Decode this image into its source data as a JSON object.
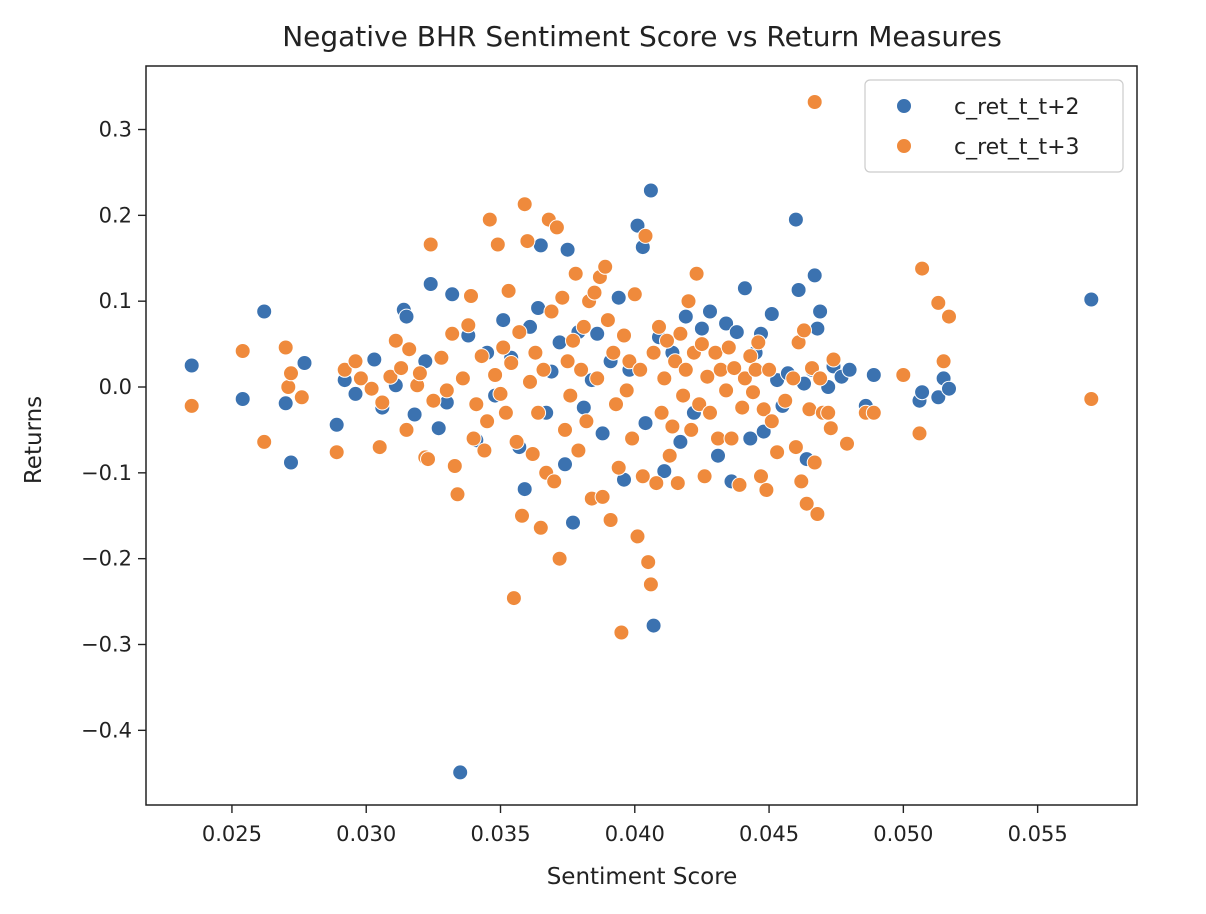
{
  "chart_data": {
    "type": "scatter",
    "title": "Negative BHR Sentiment Score vs Return Measures",
    "xlabel": "Sentiment Score",
    "ylabel": "Returns",
    "xlim": [
      0.0218,
      0.0587
    ],
    "ylim": [
      -0.487,
      0.374
    ],
    "x_ticks": [
      0.025,
      0.03,
      0.035,
      0.04,
      0.045,
      0.05,
      0.055
    ],
    "x_tick_labels": [
      "0.025",
      "0.030",
      "0.035",
      "0.040",
      "0.045",
      "0.050",
      "0.055"
    ],
    "y_ticks": [
      -0.4,
      -0.3,
      -0.2,
      -0.1,
      0.0,
      0.1,
      0.2,
      0.3
    ],
    "y_tick_labels": [
      "−0.4",
      "−0.3",
      "−0.2",
      "−0.1",
      "0.0",
      "0.1",
      "0.2",
      "0.3"
    ],
    "grid": false,
    "legend_position": "top-right",
    "series": [
      {
        "name": "c_ret_t_t+2",
        "color": "#3b72b0",
        "points": [
          [
            0.0235,
            0.025
          ],
          [
            0.0254,
            -0.014
          ],
          [
            0.0262,
            0.088
          ],
          [
            0.027,
            -0.019
          ],
          [
            0.0272,
            -0.088
          ],
          [
            0.0277,
            0.028
          ],
          [
            0.0289,
            -0.044
          ],
          [
            0.0292,
            0.008
          ],
          [
            0.0296,
            -0.008
          ],
          [
            0.0303,
            0.032
          ],
          [
            0.0306,
            -0.024
          ],
          [
            0.0311,
            0.002
          ],
          [
            0.0314,
            0.09
          ],
          [
            0.0315,
            0.082
          ],
          [
            0.0318,
            -0.032
          ],
          [
            0.0322,
            0.03
          ],
          [
            0.0324,
            0.12
          ],
          [
            0.0327,
            -0.048
          ],
          [
            0.033,
            -0.018
          ],
          [
            0.0332,
            0.108
          ],
          [
            0.0335,
            -0.449
          ],
          [
            0.0338,
            0.06
          ],
          [
            0.0341,
            -0.062
          ],
          [
            0.0345,
            0.04
          ],
          [
            0.0348,
            -0.01
          ],
          [
            0.0351,
            0.078
          ],
          [
            0.0354,
            0.034
          ],
          [
            0.0357,
            -0.07
          ],
          [
            0.0359,
            -0.119
          ],
          [
            0.0361,
            0.07
          ],
          [
            0.0364,
            0.092
          ],
          [
            0.0365,
            0.165
          ],
          [
            0.0367,
            -0.03
          ],
          [
            0.0369,
            0.018
          ],
          [
            0.0372,
            0.052
          ],
          [
            0.0374,
            -0.09
          ],
          [
            0.0375,
            0.16
          ],
          [
            0.0377,
            -0.158
          ],
          [
            0.0379,
            0.064
          ],
          [
            0.0381,
            -0.024
          ],
          [
            0.0384,
            0.008
          ],
          [
            0.0386,
            0.062
          ],
          [
            0.0388,
            -0.054
          ],
          [
            0.0391,
            0.03
          ],
          [
            0.0394,
            0.104
          ],
          [
            0.0396,
            -0.108
          ],
          [
            0.0398,
            0.02
          ],
          [
            0.0401,
            0.188
          ],
          [
            0.0403,
            0.163
          ],
          [
            0.0404,
            -0.042
          ],
          [
            0.0406,
            0.229
          ],
          [
            0.0407,
            -0.278
          ],
          [
            0.0409,
            0.058
          ],
          [
            0.0411,
            -0.098
          ],
          [
            0.0414,
            0.04
          ],
          [
            0.0417,
            -0.064
          ],
          [
            0.0419,
            0.082
          ],
          [
            0.0422,
            -0.03
          ],
          [
            0.0425,
            0.068
          ],
          [
            0.0428,
            0.088
          ],
          [
            0.0431,
            -0.08
          ],
          [
            0.0434,
            0.074
          ],
          [
            0.0436,
            -0.11
          ],
          [
            0.0438,
            0.064
          ],
          [
            0.0441,
            0.115
          ],
          [
            0.0443,
            -0.06
          ],
          [
            0.0445,
            0.04
          ],
          [
            0.0447,
            0.062
          ],
          [
            0.0448,
            -0.052
          ],
          [
            0.0451,
            0.085
          ],
          [
            0.0453,
            0.008
          ],
          [
            0.0455,
            -0.022
          ],
          [
            0.0457,
            0.016
          ],
          [
            0.046,
            0.195
          ],
          [
            0.0461,
            0.113
          ],
          [
            0.0463,
            0.004
          ],
          [
            0.0464,
            -0.084
          ],
          [
            0.0466,
            0.02
          ],
          [
            0.0467,
            0.13
          ],
          [
            0.0468,
            0.068
          ],
          [
            0.0469,
            0.088
          ],
          [
            0.0472,
            0.0
          ],
          [
            0.0474,
            0.024
          ],
          [
            0.0477,
            0.012
          ],
          [
            0.048,
            0.02
          ],
          [
            0.0486,
            -0.022
          ],
          [
            0.0489,
            0.014
          ],
          [
            0.0506,
            -0.016
          ],
          [
            0.0507,
            -0.006
          ],
          [
            0.0513,
            -0.012
          ],
          [
            0.0515,
            0.01
          ],
          [
            0.0517,
            -0.002
          ],
          [
            0.057,
            0.102
          ]
        ]
      },
      {
        "name": "c_ret_t_t+3",
        "color": "#ef8a3c",
        "points": [
          [
            0.0235,
            -0.022
          ],
          [
            0.0254,
            0.042
          ],
          [
            0.0262,
            -0.064
          ],
          [
            0.027,
            0.046
          ],
          [
            0.0271,
            0.0
          ],
          [
            0.0272,
            0.016
          ],
          [
            0.0276,
            -0.012
          ],
          [
            0.0289,
            -0.076
          ],
          [
            0.0292,
            0.02
          ],
          [
            0.0296,
            0.03
          ],
          [
            0.0298,
            0.01
          ],
          [
            0.0302,
            -0.002
          ],
          [
            0.0305,
            -0.07
          ],
          [
            0.0306,
            -0.018
          ],
          [
            0.0309,
            0.012
          ],
          [
            0.0311,
            0.054
          ],
          [
            0.0313,
            0.022
          ],
          [
            0.0315,
            -0.05
          ],
          [
            0.0316,
            0.044
          ],
          [
            0.0319,
            0.002
          ],
          [
            0.032,
            0.016
          ],
          [
            0.0322,
            -0.082
          ],
          [
            0.0323,
            -0.084
          ],
          [
            0.0324,
            0.166
          ],
          [
            0.0325,
            -0.016
          ],
          [
            0.0328,
            0.034
          ],
          [
            0.033,
            -0.004
          ],
          [
            0.0332,
            0.062
          ],
          [
            0.0333,
            -0.092
          ],
          [
            0.0334,
            -0.125
          ],
          [
            0.0336,
            0.01
          ],
          [
            0.0338,
            0.072
          ],
          [
            0.0339,
            0.106
          ],
          [
            0.034,
            -0.06
          ],
          [
            0.0341,
            -0.02
          ],
          [
            0.0343,
            0.036
          ],
          [
            0.0344,
            -0.074
          ],
          [
            0.0345,
            -0.04
          ],
          [
            0.0346,
            0.195
          ],
          [
            0.0348,
            0.014
          ],
          [
            0.0349,
            0.166
          ],
          [
            0.035,
            -0.008
          ],
          [
            0.0351,
            0.046
          ],
          [
            0.0352,
            -0.03
          ],
          [
            0.0353,
            0.112
          ],
          [
            0.0354,
            0.028
          ],
          [
            0.0355,
            -0.246
          ],
          [
            0.0356,
            -0.064
          ],
          [
            0.0357,
            0.064
          ],
          [
            0.0358,
            -0.15
          ],
          [
            0.0359,
            0.213
          ],
          [
            0.036,
            0.17
          ],
          [
            0.0361,
            0.006
          ],
          [
            0.0362,
            -0.078
          ],
          [
            0.0363,
            0.04
          ],
          [
            0.0364,
            -0.03
          ],
          [
            0.0365,
            -0.164
          ],
          [
            0.0366,
            0.02
          ],
          [
            0.0367,
            -0.1
          ],
          [
            0.0368,
            0.195
          ],
          [
            0.0369,
            0.088
          ],
          [
            0.037,
            -0.11
          ],
          [
            0.0371,
            0.186
          ],
          [
            0.0372,
            -0.2
          ],
          [
            0.0373,
            0.104
          ],
          [
            0.0374,
            -0.05
          ],
          [
            0.0375,
            0.03
          ],
          [
            0.0376,
            -0.01
          ],
          [
            0.0377,
            0.054
          ],
          [
            0.0378,
            0.132
          ],
          [
            0.0379,
            -0.074
          ],
          [
            0.038,
            0.02
          ],
          [
            0.0381,
            0.07
          ],
          [
            0.0382,
            -0.04
          ],
          [
            0.0383,
            0.1
          ],
          [
            0.0384,
            -0.13
          ],
          [
            0.0385,
            0.11
          ],
          [
            0.0386,
            0.01
          ],
          [
            0.0387,
            0.128
          ],
          [
            0.0388,
            -0.128
          ],
          [
            0.0389,
            0.14
          ],
          [
            0.039,
            0.078
          ],
          [
            0.0391,
            -0.155
          ],
          [
            0.0392,
            0.04
          ],
          [
            0.0393,
            -0.02
          ],
          [
            0.0394,
            -0.094
          ],
          [
            0.0395,
            -0.286
          ],
          [
            0.0396,
            0.06
          ],
          [
            0.0397,
            -0.004
          ],
          [
            0.0398,
            0.03
          ],
          [
            0.0399,
            -0.06
          ],
          [
            0.04,
            0.108
          ],
          [
            0.0401,
            -0.174
          ],
          [
            0.0402,
            0.02
          ],
          [
            0.0403,
            -0.104
          ],
          [
            0.0404,
            0.176
          ],
          [
            0.0405,
            -0.204
          ],
          [
            0.0406,
            -0.23
          ],
          [
            0.0407,
            0.04
          ],
          [
            0.0408,
            -0.112
          ],
          [
            0.0409,
            0.07
          ],
          [
            0.041,
            -0.03
          ],
          [
            0.0411,
            0.01
          ],
          [
            0.0412,
            0.054
          ],
          [
            0.0413,
            -0.08
          ],
          [
            0.0414,
            -0.046
          ],
          [
            0.0415,
            0.03
          ],
          [
            0.0416,
            -0.112
          ],
          [
            0.0417,
            0.062
          ],
          [
            0.0418,
            -0.01
          ],
          [
            0.0419,
            0.02
          ],
          [
            0.042,
            0.1
          ],
          [
            0.0421,
            -0.05
          ],
          [
            0.0422,
            0.04
          ],
          [
            0.0423,
            0.132
          ],
          [
            0.0424,
            -0.02
          ],
          [
            0.0425,
            0.05
          ],
          [
            0.0426,
            -0.104
          ],
          [
            0.0427,
            0.012
          ],
          [
            0.0428,
            -0.03
          ],
          [
            0.043,
            0.04
          ],
          [
            0.0431,
            -0.06
          ],
          [
            0.0432,
            0.02
          ],
          [
            0.0434,
            -0.004
          ],
          [
            0.0435,
            0.046
          ],
          [
            0.0436,
            -0.06
          ],
          [
            0.0437,
            0.022
          ],
          [
            0.0439,
            -0.114
          ],
          [
            0.044,
            -0.024
          ],
          [
            0.0441,
            0.01
          ],
          [
            0.0443,
            0.036
          ],
          [
            0.0444,
            -0.006
          ],
          [
            0.0445,
            0.02
          ],
          [
            0.0446,
            0.052
          ],
          [
            0.0447,
            -0.104
          ],
          [
            0.0448,
            -0.026
          ],
          [
            0.0449,
            -0.12
          ],
          [
            0.045,
            0.02
          ],
          [
            0.0451,
            -0.04
          ],
          [
            0.0453,
            -0.076
          ],
          [
            0.0456,
            -0.016
          ],
          [
            0.0459,
            0.01
          ],
          [
            0.046,
            -0.07
          ],
          [
            0.0461,
            0.052
          ],
          [
            0.0462,
            -0.11
          ],
          [
            0.0463,
            0.066
          ],
          [
            0.0464,
            -0.136
          ],
          [
            0.0465,
            -0.026
          ],
          [
            0.0466,
            0.022
          ],
          [
            0.0467,
            -0.088
          ],
          [
            0.0467,
            0.332
          ],
          [
            0.0468,
            -0.148
          ],
          [
            0.0469,
            0.01
          ],
          [
            0.047,
            -0.03
          ],
          [
            0.0472,
            -0.03
          ],
          [
            0.0473,
            -0.048
          ],
          [
            0.0474,
            0.032
          ],
          [
            0.0479,
            -0.066
          ],
          [
            0.0486,
            -0.03
          ],
          [
            0.0489,
            -0.03
          ],
          [
            0.05,
            0.014
          ],
          [
            0.0506,
            -0.054
          ],
          [
            0.0507,
            0.138
          ],
          [
            0.0513,
            0.098
          ],
          [
            0.0515,
            0.03
          ],
          [
            0.0517,
            0.082
          ],
          [
            0.057,
            -0.014
          ]
        ]
      }
    ]
  }
}
